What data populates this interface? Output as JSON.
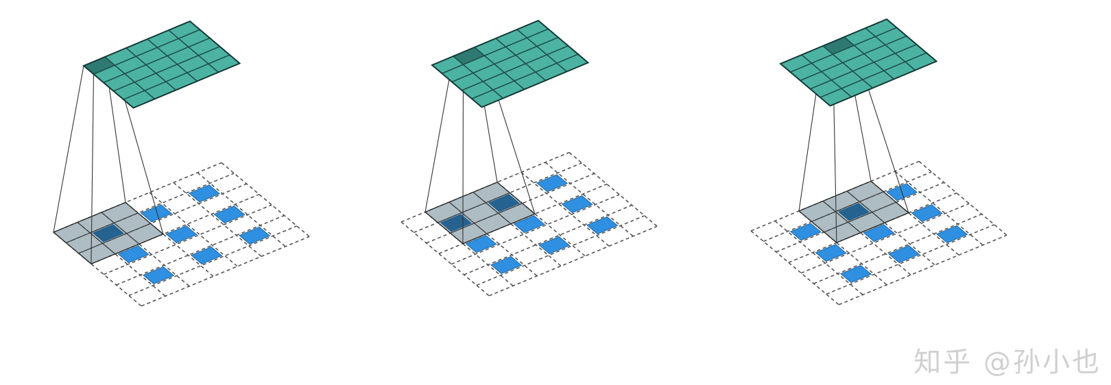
{
  "watermark": "知乎 @孙小也",
  "colors": {
    "output_cell": "#4cb3a3",
    "output_cell_active": "#2e7a72",
    "output_grid_line": "#1f4f4a",
    "input_cell": "#2f8fe0",
    "input_cell_under_kernel": "#26628f",
    "input_dashed_line": "#555555",
    "kernel_overlay": "#8fa3ad",
    "projection_line": "#333333"
  },
  "panels": [
    {
      "kernel_position": [
        0,
        0
      ]
    },
    {
      "kernel_position": [
        0,
        1
      ]
    },
    {
      "kernel_position": [
        0,
        2
      ]
    }
  ]
}
